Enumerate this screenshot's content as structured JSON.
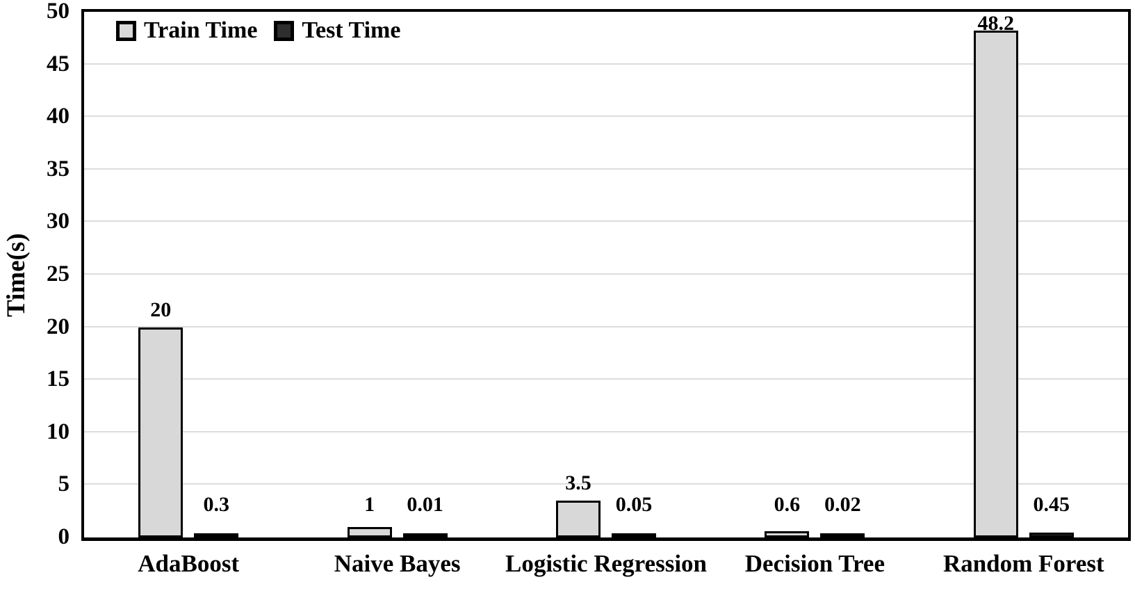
{
  "chart_data": {
    "type": "bar",
    "title": "",
    "ylabel": "Time(s)",
    "ylim": [
      0,
      50
    ],
    "ytick_step": 5,
    "yticks": [
      0,
      5,
      10,
      15,
      20,
      25,
      30,
      35,
      40,
      45,
      50
    ],
    "grid": "horizontal",
    "legend_position": "top-left-inside",
    "categories": [
      "AdaBoost",
      "Naive Bayes",
      "Logistic Regression",
      "Decision Tree",
      "Random Forest"
    ],
    "series": [
      {
        "name": "Train Time",
        "color": "#d8d8d8",
        "border_color": "#000000",
        "values": [
          20,
          1,
          3.5,
          0.6,
          48.2
        ],
        "data_labels": [
          "20",
          "1",
          "3.5",
          "0.6",
          "48.2"
        ]
      },
      {
        "name": "Test Time",
        "color": "#2e2e2e",
        "border_color": "#000000",
        "values": [
          0.3,
          0.01,
          0.05,
          0.02,
          0.45
        ],
        "data_labels": [
          "0.3",
          "0.01",
          "0.05",
          "0.02",
          "0.45"
        ]
      }
    ],
    "colors": {
      "gridline": "#dcdcdc",
      "axis_border": "#000000",
      "text": "#000000",
      "background": "#ffffff"
    }
  }
}
